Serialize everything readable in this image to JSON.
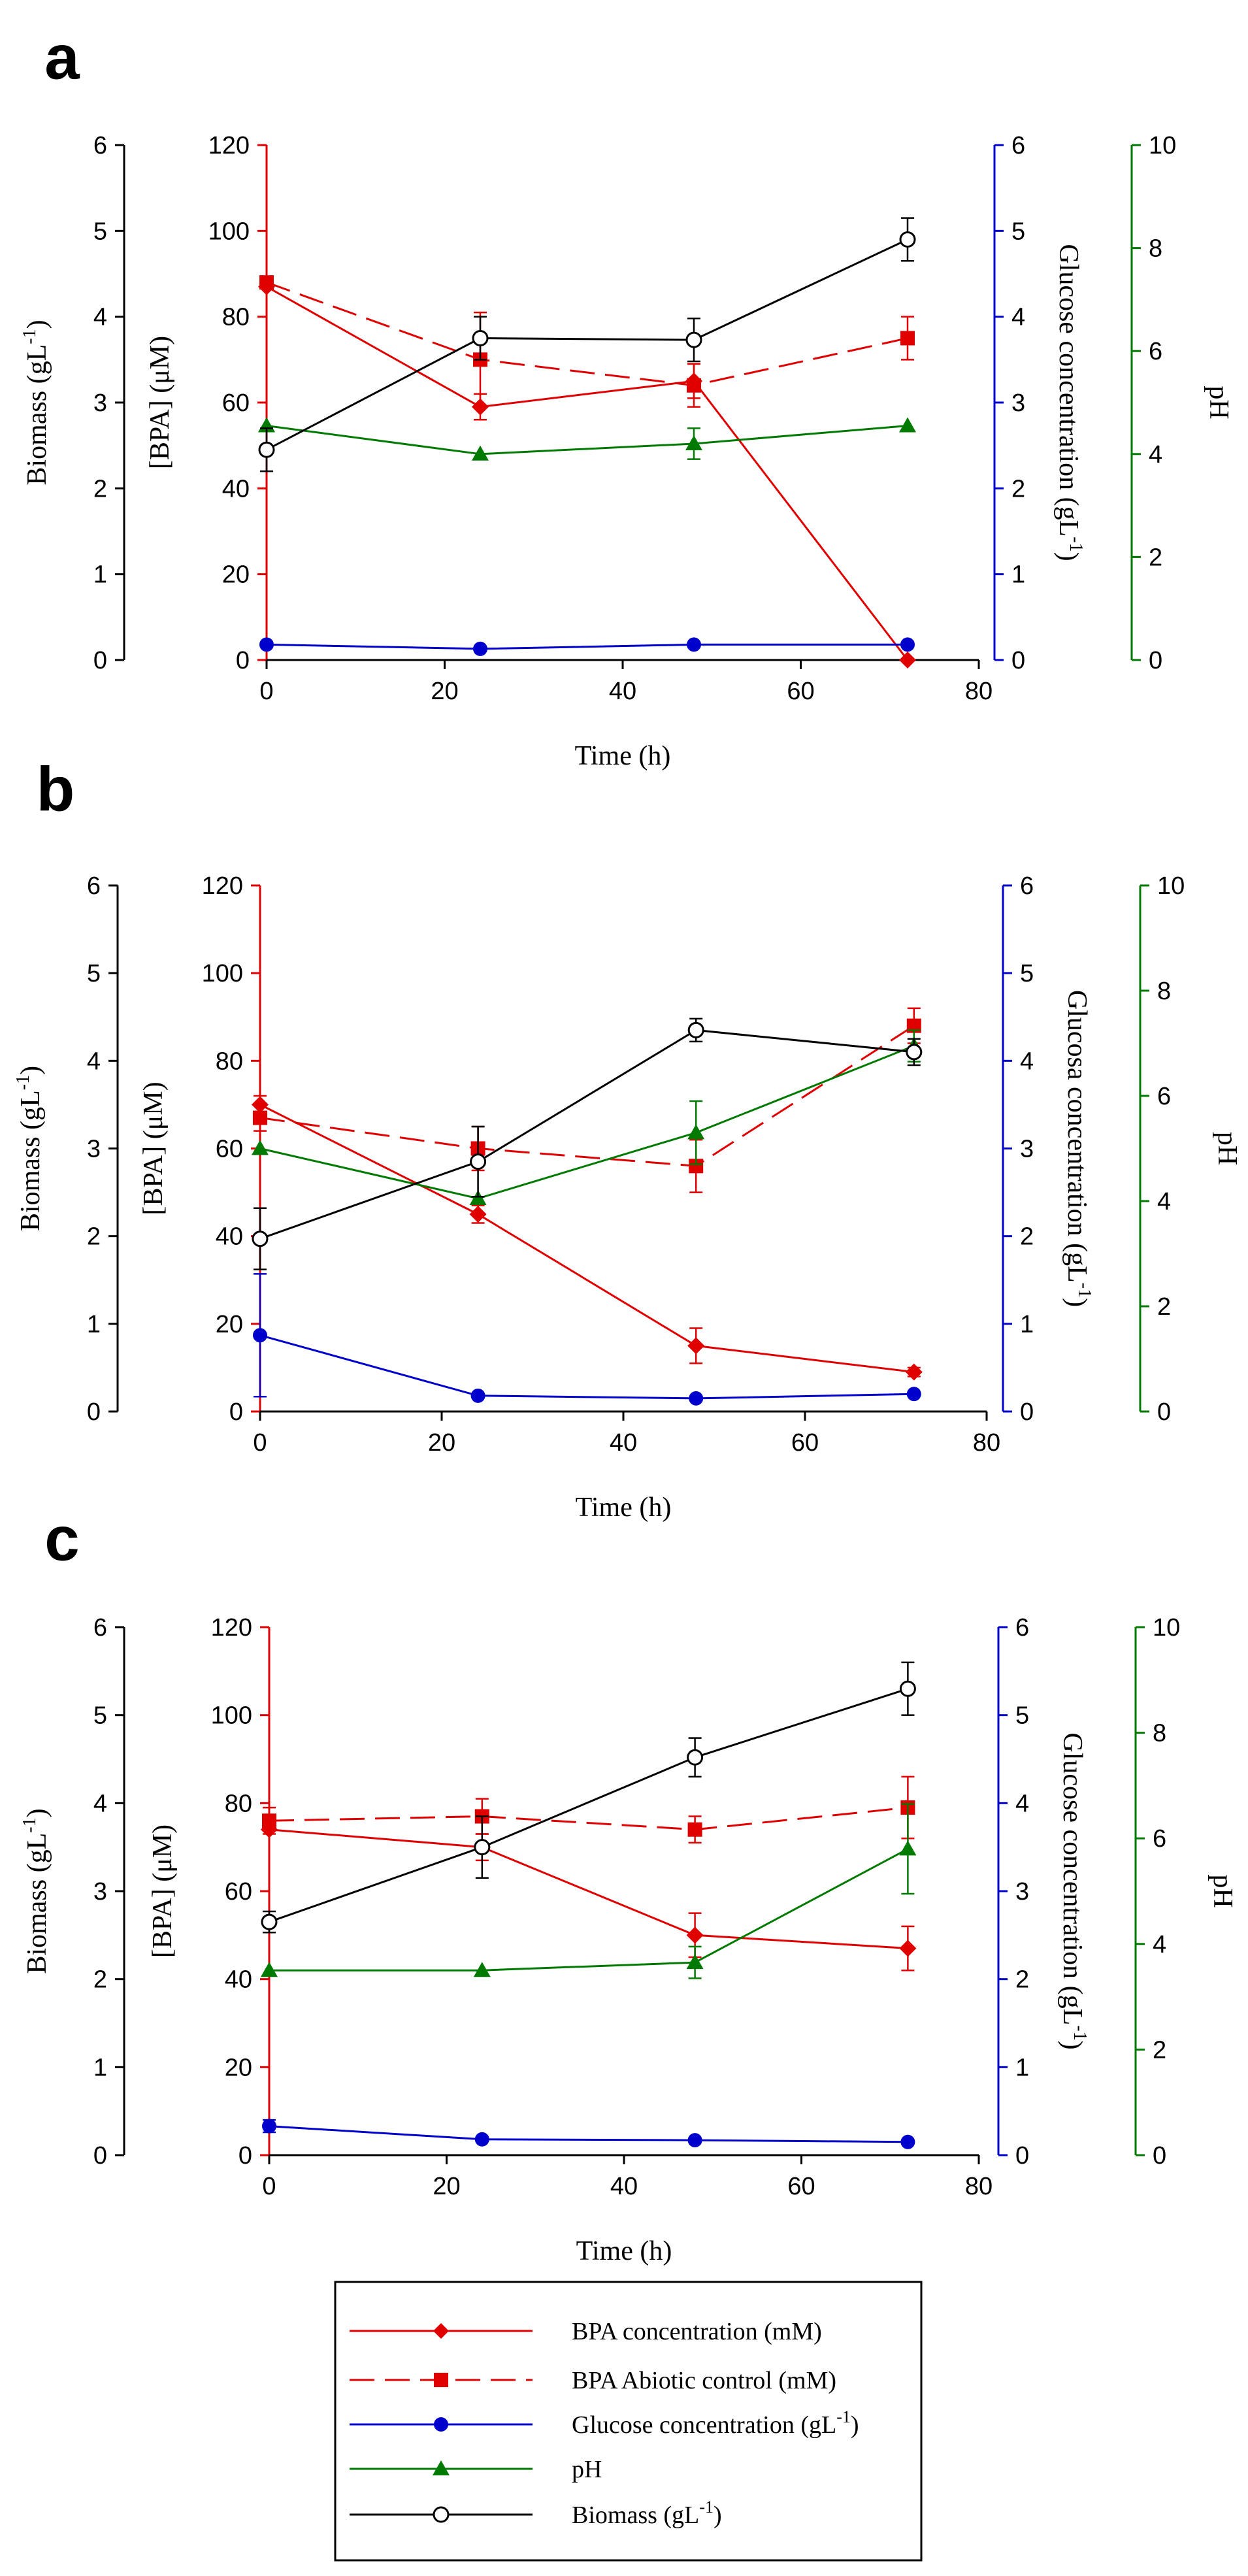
{
  "colors": {
    "bpa": "#e00000",
    "glucose": "#0000cc",
    "ph": "#007a00",
    "biomass": "#000000"
  },
  "legend": {
    "bpa": "BPA concentration (mM)",
    "abiotic": "BPA Abiotic control (mM)",
    "glucose_main": "Glucose concentration (gL",
    "glucose_sup": "-1",
    "glucose_end": ")",
    "ph": "pH",
    "biomass_main": "Biomass (gL",
    "biomass_sup": "-1",
    "biomass_end": ")"
  },
  "chart_data": [
    {
      "panel": "a",
      "type": "line",
      "title": "",
      "xlabel": "Time (h)",
      "xlim": [
        0,
        80
      ],
      "xticks": [
        0,
        20,
        40,
        60,
        80
      ],
      "axes": {
        "biomass": {
          "label": "Biomass (gL",
          "sup": "-1",
          "end": ")",
          "ylim": [
            0,
            6
          ],
          "ticks": [
            0,
            1,
            2,
            3,
            4,
            5,
            6
          ]
        },
        "bpa": {
          "label": "[BPA] (μM)",
          "ylim": [
            0,
            120
          ],
          "ticks": [
            0,
            20,
            40,
            60,
            80,
            100,
            120
          ]
        },
        "glucose": {
          "label": "Glucose concentration (gL",
          "sup": "-1",
          "end": ")",
          "ylim": [
            0,
            6
          ],
          "ticks": [
            0,
            1,
            2,
            3,
            4,
            5,
            6
          ]
        },
        "ph": {
          "label": "pH",
          "ylim": [
            0,
            10
          ],
          "ticks": [
            0,
            2,
            4,
            6,
            8,
            10
          ]
        }
      },
      "x": [
        0,
        24,
        48,
        72
      ],
      "series": [
        {
          "name": "BPA concentration (mM)",
          "key": "bpa",
          "axis": "bpa",
          "marker": "diamond",
          "dash": false,
          "values": [
            87,
            59,
            65,
            0
          ],
          "err": [
            0,
            3,
            4,
            0
          ]
        },
        {
          "name": "BPA Abiotic control (mM)",
          "key": "abiotic",
          "axis": "bpa",
          "marker": "square",
          "dash": true,
          "values": [
            88,
            70,
            64,
            75
          ],
          "err": [
            0,
            11,
            5,
            5
          ]
        },
        {
          "name": "Glucose concentration (gL-1)",
          "key": "glucose",
          "axis": "glucose",
          "marker": "circle",
          "dash": false,
          "values": [
            0.18,
            0.13,
            0.18,
            0.18
          ],
          "err": [
            0,
            0,
            0,
            0
          ]
        },
        {
          "name": "pH",
          "key": "ph",
          "axis": "ph",
          "marker": "triangle",
          "dash": false,
          "values": [
            4.55,
            4.0,
            4.2,
            4.55
          ],
          "err": [
            0,
            0,
            0.3,
            0
          ]
        },
        {
          "name": "Biomass (gL-1)",
          "key": "biomass",
          "axis": "biomass",
          "marker": "open-circle",
          "dash": false,
          "values": [
            2.45,
            3.75,
            3.73,
            4.9
          ],
          "err": [
            0.25,
            0.25,
            0.25,
            0.25
          ]
        }
      ]
    },
    {
      "panel": "b",
      "type": "line",
      "title": "",
      "xlabel": "Time (h)",
      "xlim": [
        0,
        80
      ],
      "xticks": [
        0,
        20,
        40,
        60,
        80
      ],
      "axes": {
        "biomass": {
          "label": "Biomass (gL",
          "sup": "-1",
          "end": ")",
          "ylim": [
            0,
            6
          ],
          "ticks": [
            0,
            1,
            2,
            3,
            4,
            5,
            6
          ]
        },
        "bpa": {
          "label": "[BPA] (μM)",
          "ylim": [
            0,
            120
          ],
          "ticks": [
            0,
            20,
            40,
            60,
            80,
            100,
            120
          ]
        },
        "glucose": {
          "label": "Glucosa concentration (gL",
          "sup": "-1",
          "end": ")",
          "ylim": [
            0,
            6
          ],
          "ticks": [
            0,
            1,
            2,
            3,
            4,
            5,
            6
          ]
        },
        "ph": {
          "label": "pH",
          "ylim": [
            0,
            10
          ],
          "ticks": [
            0,
            2,
            4,
            6,
            8,
            10
          ]
        }
      },
      "x": [
        0,
        24,
        48,
        72
      ],
      "series": [
        {
          "name": "BPA concentration (mM)",
          "key": "bpa",
          "axis": "bpa",
          "marker": "diamond",
          "dash": false,
          "values": [
            70,
            45,
            15,
            9
          ],
          "err": [
            2,
            2,
            4,
            1
          ]
        },
        {
          "name": "BPA Abiotic control (mM)",
          "key": "abiotic",
          "axis": "bpa",
          "marker": "square",
          "dash": true,
          "values": [
            67,
            60,
            56,
            88
          ],
          "err": [
            3,
            5,
            6,
            4
          ]
        },
        {
          "name": "Glucose concentration (gL-1)",
          "key": "glucose",
          "axis": "glucose",
          "marker": "circle",
          "dash": false,
          "values": [
            0.87,
            0.18,
            0.15,
            0.2
          ],
          "err": [
            0.7,
            0,
            0,
            0
          ]
        },
        {
          "name": "pH",
          "key": "ph",
          "axis": "ph",
          "marker": "triangle",
          "dash": false,
          "values": [
            5.0,
            4.05,
            5.3,
            6.95
          ],
          "err": [
            0,
            0,
            0.6,
            0.3
          ]
        },
        {
          "name": "Biomass (gL-1)",
          "key": "biomass",
          "axis": "biomass",
          "marker": "open-circle",
          "dash": false,
          "values": [
            1.97,
            2.85,
            4.35,
            4.1
          ],
          "err": [
            0.35,
            0.4,
            0.13,
            0.15
          ]
        }
      ]
    },
    {
      "panel": "c",
      "type": "line",
      "title": "",
      "xlabel": "Time (h)",
      "xlim": [
        0,
        80
      ],
      "xticks": [
        0,
        20,
        40,
        60,
        80
      ],
      "axes": {
        "biomass": {
          "label": "Biomass (gL",
          "sup": "-1",
          "end": ")",
          "ylim": [
            0,
            6
          ],
          "ticks": [
            0,
            1,
            2,
            3,
            4,
            5,
            6
          ]
        },
        "bpa": {
          "label": "[BPA] (μM)",
          "ylim": [
            0,
            120
          ],
          "ticks": [
            0,
            20,
            40,
            60,
            80,
            100,
            120
          ]
        },
        "glucose": {
          "label": "Glucose concentration (gL",
          "sup": "-1",
          "end": ")",
          "ylim": [
            0,
            6
          ],
          "ticks": [
            0,
            1,
            2,
            3,
            4,
            5,
            6
          ]
        },
        "ph": {
          "label": "pH",
          "ylim": [
            0,
            10
          ],
          "ticks": [
            0,
            2,
            4,
            6,
            8,
            10
          ]
        }
      },
      "x": [
        0,
        24,
        48,
        72
      ],
      "series": [
        {
          "name": "BPA concentration (mM)",
          "key": "bpa",
          "axis": "bpa",
          "marker": "diamond",
          "dash": false,
          "values": [
            74,
            70,
            50,
            47
          ],
          "err": [
            0,
            3,
            5,
            5
          ]
        },
        {
          "name": "BPA Abiotic control (mM)",
          "key": "abiotic",
          "axis": "bpa",
          "marker": "square",
          "dash": true,
          "values": [
            76,
            77,
            74,
            79
          ],
          "err": [
            3,
            4,
            3,
            7
          ]
        },
        {
          "name": "Glucose concentration (gL-1)",
          "key": "glucose",
          "axis": "glucose",
          "marker": "circle",
          "dash": false,
          "values": [
            0.33,
            0.18,
            0.17,
            0.15
          ],
          "err": [
            0.07,
            0,
            0,
            0
          ]
        },
        {
          "name": "pH",
          "key": "ph",
          "axis": "ph",
          "marker": "triangle",
          "dash": false,
          "values": [
            3.5,
            3.5,
            3.65,
            5.8
          ],
          "err": [
            0,
            0,
            0.3,
            0.85
          ]
        },
        {
          "name": "Biomass (gL-1)",
          "key": "biomass",
          "axis": "biomass",
          "marker": "open-circle",
          "dash": false,
          "values": [
            2.65,
            3.5,
            4.52,
            5.3
          ],
          "err": [
            0.12,
            0.35,
            0.22,
            0.3
          ]
        }
      ]
    }
  ]
}
